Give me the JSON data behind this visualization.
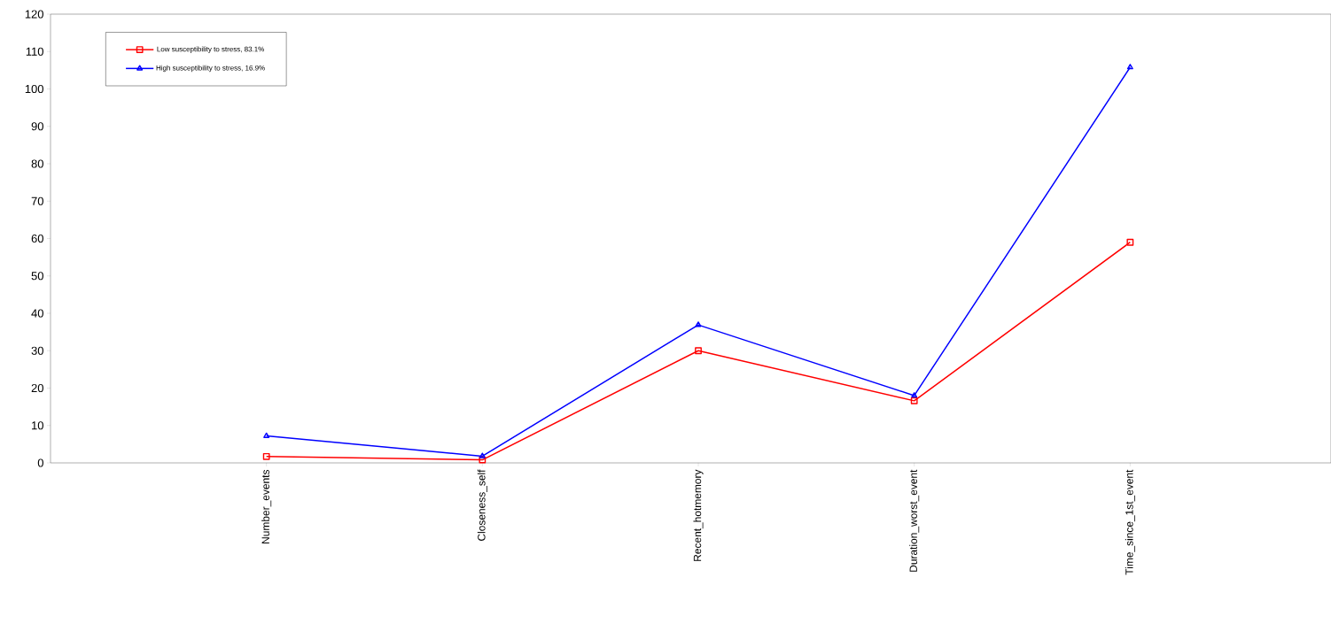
{
  "chart_data": {
    "type": "line",
    "categories": [
      "Number_events",
      "Closeness_self",
      "Recent_hotmemory",
      "Duration_worst_event",
      "Time_since_1st_event"
    ],
    "series": [
      {
        "name": "Low susceptibility to stress, 83.1%",
        "color": "#ff0000",
        "marker": "square",
        "values": [
          1.7,
          0.8,
          30,
          16.6,
          59
        ]
      },
      {
        "name": "High susceptibility to stress, 16.9%",
        "color": "#0000ff",
        "marker": "triangle",
        "values": [
          7.2,
          1.8,
          36.9,
          18,
          105.8
        ]
      }
    ],
    "ylim": [
      0,
      120
    ],
    "yticks": [
      0,
      10,
      20,
      30,
      40,
      50,
      60,
      70,
      80,
      90,
      100,
      110,
      120
    ],
    "grid": false,
    "legend": "top left",
    "line_style": "solid"
  }
}
